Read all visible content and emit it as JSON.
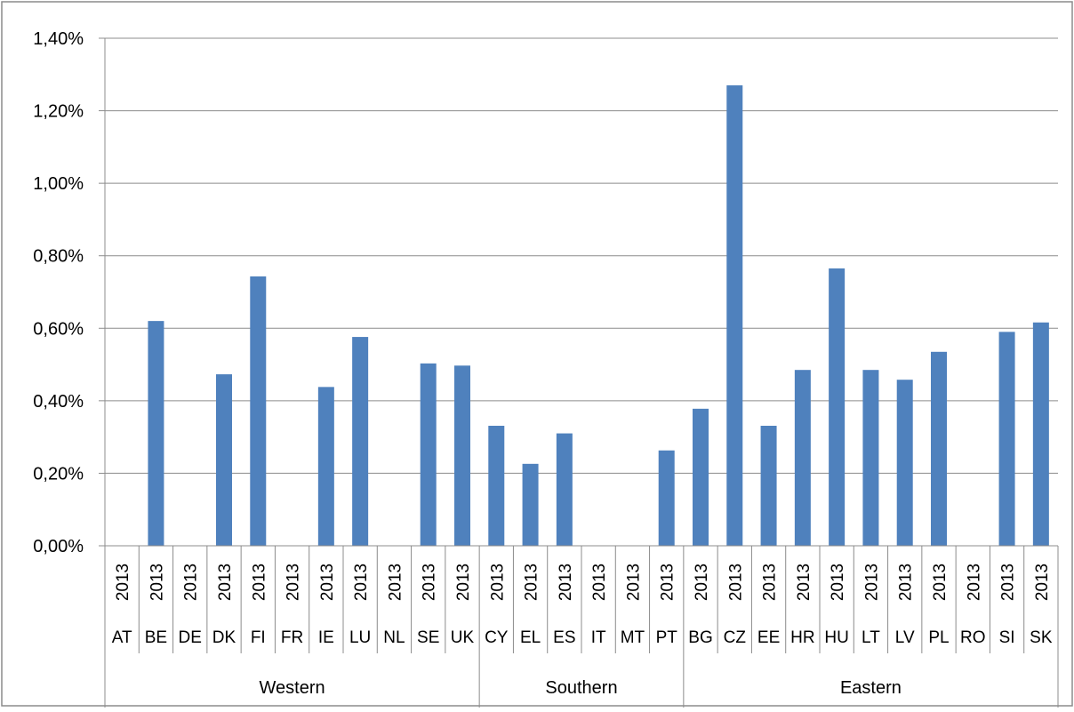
{
  "chart_data": {
    "type": "bar",
    "title": "",
    "xlabel": "",
    "ylabel": "",
    "ylim": [
      0,
      1.4
    ],
    "ytick_values": [
      0,
      0.2,
      0.4,
      0.6,
      0.8,
      1.0,
      1.2,
      1.4
    ],
    "ytick_labels": [
      "0,00%",
      "0,20%",
      "0,40%",
      "0,60%",
      "0,80%",
      "1,00%",
      "1,20%",
      "1,40%"
    ],
    "grid": true,
    "legend": "none",
    "bar_color": "#4F81BD",
    "year_label": "2013",
    "categories": [
      "AT",
      "BE",
      "DE",
      "DK",
      "FI",
      "FR",
      "IE",
      "LU",
      "NL",
      "SE",
      "UK",
      "CY",
      "EL",
      "ES",
      "IT",
      "MT",
      "PT",
      "BG",
      "CZ",
      "EE",
      "HR",
      "HU",
      "LT",
      "LV",
      "PL",
      "RO",
      "SI",
      "SK"
    ],
    "values": [
      0,
      0.62,
      0,
      0.473,
      0.743,
      0,
      0.438,
      0.576,
      0,
      0.503,
      0.497,
      0.331,
      0.226,
      0.31,
      0,
      0,
      0.263,
      0.378,
      1.27,
      0.331,
      0.485,
      0.765,
      0.485,
      0.458,
      0.535,
      0,
      0.59,
      0.616
    ],
    "groups": [
      {
        "name": "Western",
        "start": 0,
        "count": 11
      },
      {
        "name": "Southern",
        "start": 11,
        "count": 6
      },
      {
        "name": "Eastern",
        "start": 17,
        "count": 11
      }
    ]
  }
}
